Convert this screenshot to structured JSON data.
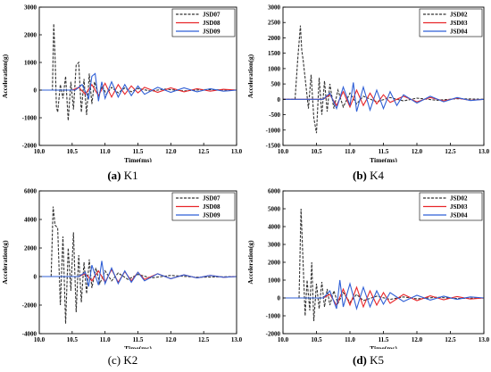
{
  "chart_data": [
    {
      "type": "line",
      "panel_id": "K1",
      "caption_letter": "(a)",
      "caption_name": "K1",
      "xlabel": "Time(ms)",
      "ylabel": "Acceleration(g)",
      "xlim": [
        10.0,
        13.0
      ],
      "ylim": [
        -2000,
        3000
      ],
      "xticks": [
        "10.0",
        "10.5",
        "11.0",
        "11.5",
        "12.0",
        "12.5",
        "13.0"
      ],
      "yticks": [
        "-2000",
        "-1000",
        "0",
        "1000",
        "2000",
        "3000"
      ],
      "legend_position": "top-right",
      "series": [
        {
          "name": "JSD07",
          "color": "#333333",
          "dash": "dashed",
          "x": [
            10.0,
            10.2,
            10.22,
            10.24,
            10.26,
            10.28,
            10.32,
            10.36,
            10.4,
            10.44,
            10.48,
            10.52,
            10.56,
            10.6,
            10.64,
            10.68,
            10.72,
            10.76,
            10.8,
            10.84,
            10.9,
            10.96,
            11.02,
            11.1,
            11.2,
            11.3,
            11.4,
            11.5,
            11.7,
            11.9,
            12.2,
            12.5,
            13.0
          ],
          "y": [
            0,
            0,
            2400,
            1200,
            -600,
            -800,
            200,
            -300,
            500,
            -1100,
            300,
            -700,
            900,
            1000,
            -800,
            400,
            -900,
            600,
            -500,
            300,
            -200,
            150,
            -150,
            100,
            -100,
            80,
            -60,
            60,
            -40,
            40,
            -30,
            20,
            0
          ]
        },
        {
          "name": "JSD08",
          "color": "#e8262a",
          "dash": "solid",
          "x": [
            10.0,
            10.5,
            10.6,
            10.7,
            10.8,
            10.9,
            11.0,
            11.1,
            11.2,
            11.3,
            11.4,
            11.5,
            11.6,
            11.8,
            12.0,
            12.2,
            12.4,
            12.6,
            12.8,
            13.0
          ],
          "y": [
            0,
            0,
            100,
            -150,
            200,
            -200,
            250,
            -250,
            200,
            -150,
            150,
            -100,
            100,
            -80,
            80,
            -60,
            50,
            -40,
            30,
            0
          ]
        },
        {
          "name": "JSD09",
          "color": "#2f5fd6",
          "dash": "solid",
          "x": [
            10.0,
            10.55,
            10.65,
            10.75,
            10.8,
            10.85,
            10.9,
            10.95,
            11.0,
            11.1,
            11.2,
            11.3,
            11.4,
            11.5,
            11.6,
            11.8,
            12.0,
            12.2,
            12.4,
            12.6,
            12.8,
            13.0
          ],
          "y": [
            0,
            0,
            200,
            -300,
            500,
            600,
            -400,
            300,
            -300,
            300,
            -250,
            200,
            -200,
            150,
            -150,
            100,
            -80,
            80,
            -60,
            50,
            -40,
            0
          ]
        }
      ]
    },
    {
      "type": "line",
      "panel_id": "K4",
      "caption_letter": "(b)",
      "caption_name": "K4",
      "xlabel": "Time(ms)",
      "ylabel": "Acceleration(g)",
      "xlim": [
        10.0,
        13.0
      ],
      "ylim": [
        -1500,
        3000
      ],
      "xticks": [
        "10.0",
        "10.5",
        "11.0",
        "11.5",
        "12.0",
        "12.5",
        "13.0"
      ],
      "yticks": [
        "-1500",
        "-1000",
        "-500",
        "0",
        "500",
        "1000",
        "1500",
        "2000",
        "2500",
        "3000"
      ],
      "legend_position": "top-right",
      "series": [
        {
          "name": "JSD02",
          "color": "#333333",
          "dash": "dashed",
          "x": [
            10.0,
            10.18,
            10.22,
            10.26,
            10.28,
            10.3,
            10.34,
            10.38,
            10.42,
            10.46,
            10.5,
            10.54,
            10.58,
            10.62,
            10.66,
            10.7,
            10.76,
            10.82,
            10.9,
            11.0,
            11.1,
            11.2,
            11.4,
            11.6,
            11.8,
            12.0,
            12.3,
            12.6,
            13.0
          ],
          "y": [
            0,
            0,
            1300,
            2400,
            1600,
            1300,
            500,
            -300,
            800,
            -600,
            -1100,
            700,
            -500,
            600,
            -400,
            500,
            -300,
            300,
            -250,
            200,
            -150,
            100,
            -80,
            60,
            -50,
            40,
            -30,
            20,
            0
          ]
        },
        {
          "name": "JSD03",
          "color": "#e8262a",
          "dash": "solid",
          "x": [
            10.0,
            10.6,
            10.7,
            10.8,
            10.9,
            11.0,
            11.1,
            11.2,
            11.3,
            11.4,
            11.5,
            11.6,
            11.8,
            12.0,
            12.2,
            12.4,
            12.6,
            12.8,
            13.0
          ],
          "y": [
            0,
            0,
            150,
            -200,
            250,
            -250,
            300,
            -200,
            200,
            -150,
            150,
            -100,
            100,
            -80,
            60,
            -50,
            40,
            -30,
            0
          ]
        },
        {
          "name": "JSD04",
          "color": "#2f5fd6",
          "dash": "solid",
          "x": [
            10.0,
            10.6,
            10.7,
            10.8,
            10.9,
            11.0,
            11.05,
            11.1,
            11.2,
            11.3,
            11.4,
            11.5,
            11.6,
            11.7,
            11.8,
            12.0,
            12.2,
            12.4,
            12.6,
            12.8,
            13.0
          ],
          "y": [
            0,
            0,
            200,
            -300,
            400,
            -200,
            550,
            -400,
            400,
            -350,
            300,
            -300,
            250,
            -200,
            150,
            -120,
            100,
            -80,
            60,
            -40,
            0
          ]
        }
      ]
    },
    {
      "type": "line",
      "panel_id": "K2",
      "caption_letter": "(c)",
      "caption_name": "K2",
      "xlabel": "Time(ms)",
      "ylabel": "Acceleration(g)",
      "xlim": [
        10.0,
        13.0
      ],
      "ylim": [
        -4000,
        6000
      ],
      "xticks": [
        "10.0",
        "10.5",
        "11.0",
        "11.5",
        "12.0",
        "12.5",
        "13.0"
      ],
      "yticks": [
        "-4000",
        "-2000",
        "0",
        "2000",
        "4000",
        "6000"
      ],
      "legend_position": "top-right",
      "series": [
        {
          "name": "JSD07",
          "color": "#333333",
          "dash": "dashed",
          "x": [
            10.0,
            10.18,
            10.21,
            10.24,
            10.28,
            10.32,
            10.36,
            10.4,
            10.44,
            10.48,
            10.52,
            10.56,
            10.6,
            10.64,
            10.68,
            10.72,
            10.76,
            10.8,
            10.86,
            10.92,
            11.0,
            11.1,
            11.2,
            11.35,
            11.5,
            11.7,
            12.0,
            12.4,
            13.0
          ],
          "y": [
            0,
            0,
            4900,
            3600,
            3400,
            -2000,
            2800,
            -3300,
            2000,
            -1000,
            3100,
            -2500,
            1500,
            -1800,
            1000,
            -1200,
            1200,
            -800,
            600,
            -500,
            400,
            -300,
            250,
            -200,
            150,
            -100,
            80,
            -50,
            0
          ]
        },
        {
          "name": "JSD08",
          "color": "#e8262a",
          "dash": "solid",
          "x": [
            10.0,
            10.6,
            10.7,
            10.8,
            10.9,
            11.0,
            11.1,
            11.2,
            11.3,
            11.4,
            11.5,
            11.6,
            11.8,
            12.0,
            12.2,
            12.4,
            12.6,
            12.8,
            13.0
          ],
          "y": [
            0,
            0,
            200,
            -300,
            400,
            -400,
            500,
            -400,
            350,
            -300,
            300,
            -200,
            200,
            -150,
            120,
            -100,
            80,
            -50,
            0
          ]
        },
        {
          "name": "JSD09",
          "color": "#2f5fd6",
          "dash": "solid",
          "x": [
            10.0,
            10.6,
            10.7,
            10.75,
            10.8,
            10.9,
            10.95,
            11.0,
            11.1,
            11.2,
            11.3,
            11.4,
            11.5,
            11.6,
            11.8,
            12.0,
            12.2,
            12.4,
            12.6,
            12.8,
            13.0
          ],
          "y": [
            0,
            0,
            300,
            -700,
            800,
            -600,
            1100,
            -500,
            600,
            -500,
            400,
            -400,
            300,
            -300,
            200,
            -150,
            120,
            -100,
            80,
            -50,
            0
          ]
        }
      ]
    },
    {
      "type": "line",
      "panel_id": "K5",
      "caption_letter": "(d)",
      "caption_name": "K5",
      "xlabel": "Time(ms)",
      "ylabel": "Acceleration(g)",
      "xlim": [
        10.0,
        13.0
      ],
      "ylim": [
        -2000,
        6000
      ],
      "xticks": [
        "10.0",
        "10.5",
        "11.0",
        "11.5",
        "12.0",
        "12.5",
        "13.0"
      ],
      "yticks": [
        "-2000",
        "-1000",
        "0",
        "1000",
        "2000",
        "3000",
        "4000",
        "5000",
        "6000"
      ],
      "legend_position": "top-right",
      "series": [
        {
          "name": "JSD02",
          "color": "#333333",
          "dash": "dashed",
          "x": [
            10.0,
            10.24,
            10.27,
            10.3,
            10.33,
            10.36,
            10.4,
            10.43,
            10.46,
            10.5,
            10.54,
            10.58,
            10.62,
            10.66,
            10.7,
            10.76,
            10.82,
            10.9,
            11.0,
            11.1,
            11.2,
            11.4,
            11.6,
            11.8,
            12.0,
            12.3,
            12.6,
            13.0
          ],
          "y": [
            0,
            0,
            5000,
            2000,
            -1000,
            1000,
            -700,
            2000,
            -1300,
            800,
            -600,
            900,
            -500,
            500,
            -400,
            400,
            -300,
            300,
            -250,
            200,
            -150,
            100,
            -80,
            60,
            -50,
            40,
            -30,
            0
          ]
        },
        {
          "name": "JSD03",
          "color": "#e8262a",
          "dash": "solid",
          "x": [
            10.0,
            10.6,
            10.7,
            10.8,
            10.9,
            11.0,
            11.1,
            11.2,
            11.3,
            11.4,
            11.5,
            11.6,
            11.8,
            12.0,
            12.2,
            12.4,
            12.6,
            12.8,
            13.0
          ],
          "y": [
            0,
            0,
            200,
            -400,
            500,
            -400,
            600,
            -500,
            400,
            -400,
            300,
            -300,
            200,
            -150,
            120,
            -100,
            80,
            -60,
            0
          ]
        },
        {
          "name": "JSD04",
          "color": "#2f5fd6",
          "dash": "solid",
          "x": [
            10.0,
            10.6,
            10.7,
            10.8,
            10.85,
            10.9,
            11.0,
            11.1,
            11.2,
            11.3,
            11.4,
            11.5,
            11.6,
            11.8,
            12.0,
            12.2,
            12.4,
            12.6,
            12.8,
            13.0
          ],
          "y": [
            0,
            0,
            400,
            -600,
            1000,
            -500,
            800,
            -600,
            600,
            -500,
            400,
            -350,
            300,
            -200,
            150,
            -120,
            100,
            -80,
            60,
            0
          ]
        }
      ]
    }
  ]
}
